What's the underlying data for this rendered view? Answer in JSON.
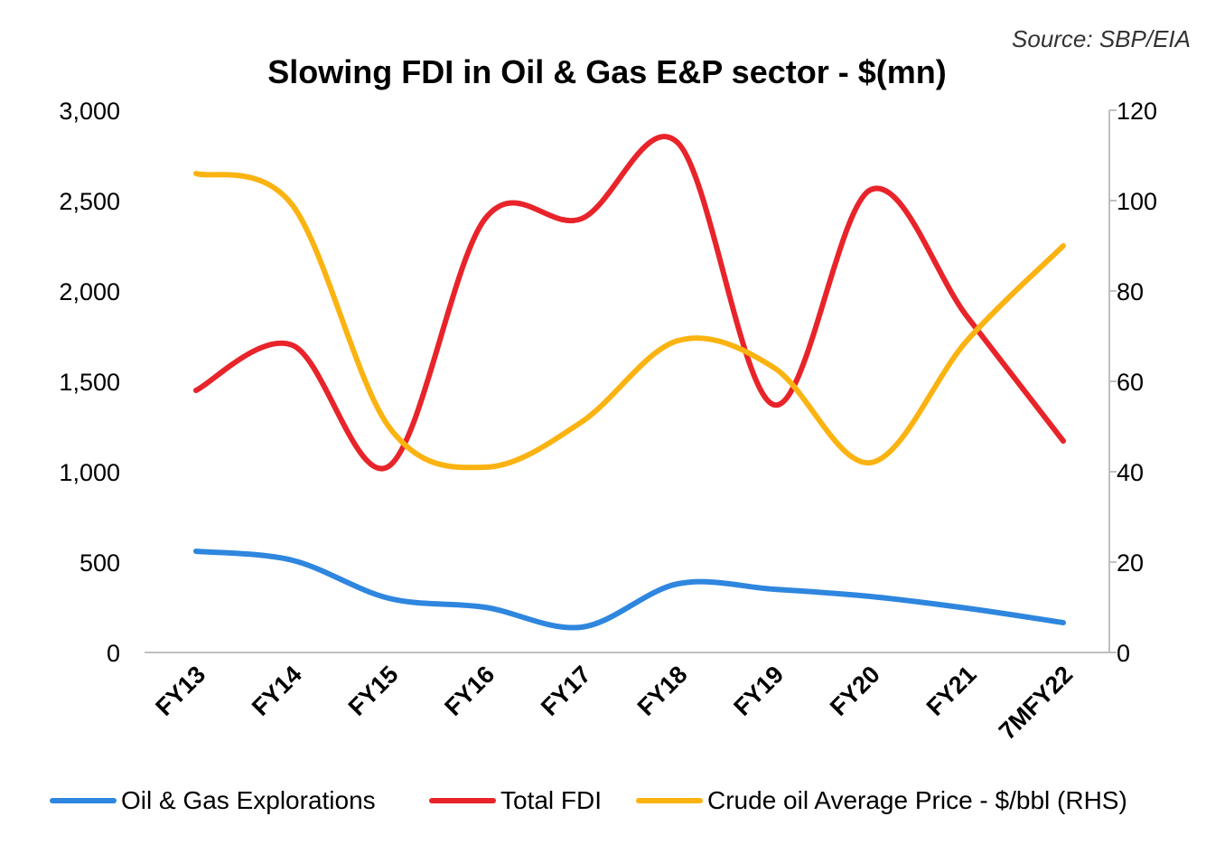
{
  "chart_data": {
    "type": "line",
    "title": "Slowing FDI in Oil & Gas E&P sector  - $(mn)",
    "source": "Source: SBP/EIA",
    "categories": [
      "FY13",
      "FY14",
      "FY15",
      "FY16",
      "FY17",
      "FY18",
      "FY19",
      "FY20",
      "FY21",
      "7MFY22"
    ],
    "y_left": {
      "ylim": [
        0,
        3000
      ],
      "ticks": [
        0,
        500,
        1000,
        1500,
        2000,
        2500,
        3000
      ],
      "tick_labels": [
        "0",
        "500",
        "1,000",
        "1,500",
        "2,000",
        "2,500",
        "3,000"
      ]
    },
    "y_right": {
      "ylim": [
        0,
        120
      ],
      "ticks": [
        0,
        20,
        40,
        60,
        80,
        100,
        120
      ],
      "tick_labels": [
        "0",
        "20",
        "40",
        "60",
        "80",
        "100",
        "120"
      ]
    },
    "series": [
      {
        "name": "Oil & Gas Explorations",
        "axis": "left",
        "color": "#2e86de",
        "values": [
          560,
          510,
          300,
          250,
          140,
          380,
          350,
          310,
          245,
          165
        ]
      },
      {
        "name": "Total FDI",
        "axis": "left",
        "color": "#e8242a",
        "values": [
          1450,
          1700,
          1030,
          2400,
          2400,
          2820,
          1370,
          2560,
          1860,
          1170
        ]
      },
      {
        "name": "Crude oil Average Price - $/bbl (RHS)",
        "axis": "right",
        "color": "#fbb311",
        "values": [
          106,
          99,
          50,
          41,
          51,
          69,
          63,
          42,
          69,
          90
        ]
      }
    ],
    "grid": false,
    "legend_position": "bottom"
  }
}
